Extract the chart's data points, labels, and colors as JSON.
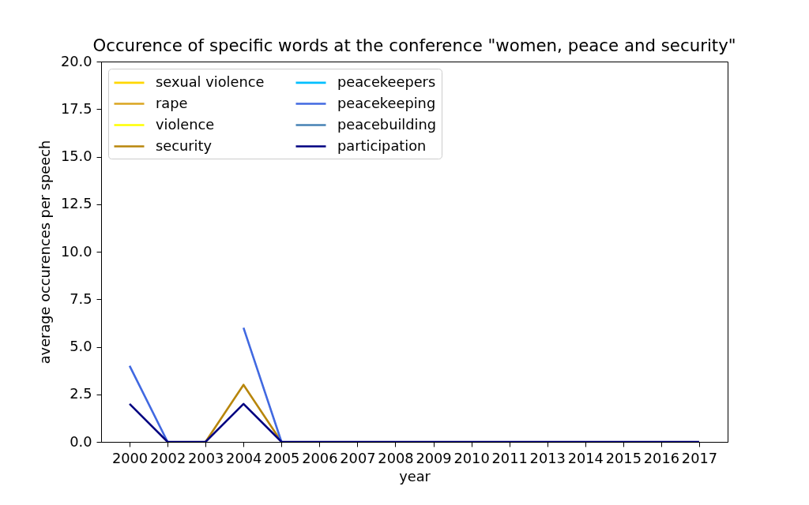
{
  "chart_data": {
    "type": "line",
    "title": "Occurence of specific words at the conference \"women, peace and security\"",
    "xlabel": "year",
    "ylabel": "average occurences per speech",
    "categories": [
      "2000",
      "2002",
      "2003",
      "2004",
      "2005",
      "2006",
      "2007",
      "2008",
      "2009",
      "2010",
      "2011",
      "2013",
      "2014",
      "2015",
      "2016",
      "2017"
    ],
    "series": [
      {
        "name": "sexual violence",
        "color": "#ffd700",
        "values": [
          null,
          null,
          null,
          null,
          null,
          null,
          null,
          null,
          null,
          null,
          null,
          null,
          null,
          null,
          null,
          null
        ]
      },
      {
        "name": "rape",
        "color": "#daa520",
        "values": [
          null,
          null,
          null,
          null,
          null,
          null,
          null,
          null,
          null,
          null,
          null,
          null,
          null,
          null,
          null,
          null
        ]
      },
      {
        "name": "violence",
        "color": "#ffff00",
        "values": [
          null,
          null,
          null,
          null,
          null,
          null,
          null,
          null,
          null,
          null,
          null,
          null,
          null,
          null,
          null,
          null
        ]
      },
      {
        "name": "security",
        "color": "#b8860b",
        "values": [
          null,
          null,
          0,
          3,
          0,
          null,
          null,
          null,
          null,
          null,
          null,
          null,
          null,
          null,
          null,
          null
        ]
      },
      {
        "name": "peacekeepers",
        "color": "#00bfff",
        "values": [
          null,
          null,
          null,
          null,
          null,
          null,
          null,
          null,
          null,
          null,
          null,
          null,
          null,
          null,
          null,
          null
        ]
      },
      {
        "name": "peacekeeping",
        "color": "#4169e1",
        "values": [
          4,
          0,
          null,
          6,
          0,
          null,
          null,
          null,
          null,
          null,
          null,
          null,
          null,
          null,
          null,
          null
        ]
      },
      {
        "name": "peacebuilding",
        "color": "#4682b4",
        "values": [
          null,
          null,
          null,
          null,
          null,
          null,
          null,
          null,
          null,
          null,
          null,
          null,
          null,
          null,
          null,
          null
        ]
      },
      {
        "name": "participation",
        "color": "#000080",
        "values": [
          2,
          0,
          0,
          2,
          0,
          0,
          0,
          0,
          0,
          0,
          0,
          0,
          0,
          0,
          0,
          0
        ]
      }
    ],
    "ylim": [
      0,
      20
    ],
    "yticks": [
      {
        "value": 0,
        "label": "0.0"
      },
      {
        "value": 2.5,
        "label": "2.5"
      },
      {
        "value": 5,
        "label": "5.0"
      },
      {
        "value": 7.5,
        "label": "7.5"
      },
      {
        "value": 10,
        "label": "10.0"
      },
      {
        "value": 12.5,
        "label": "12.5"
      },
      {
        "value": 15,
        "label": "15.0"
      },
      {
        "value": 17.5,
        "label": "17.5"
      },
      {
        "value": 20,
        "label": "20.0"
      }
    ],
    "legend": "top left"
  }
}
